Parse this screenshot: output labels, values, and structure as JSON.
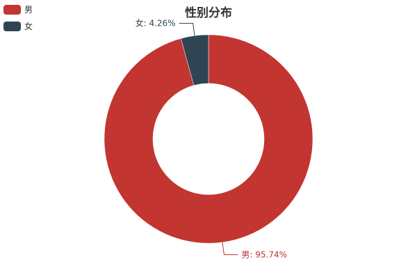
{
  "chart_data": {
    "type": "pie",
    "variant": "donut",
    "title": "性别分布",
    "legend_position": "top-left",
    "slices": [
      {
        "name": "男",
        "value": 95.74,
        "label": "男: 95.74%",
        "color": "#c23531"
      },
      {
        "name": "女",
        "value": 4.26,
        "label": "女: 4.26%",
        "color": "#2f4554"
      }
    ]
  }
}
